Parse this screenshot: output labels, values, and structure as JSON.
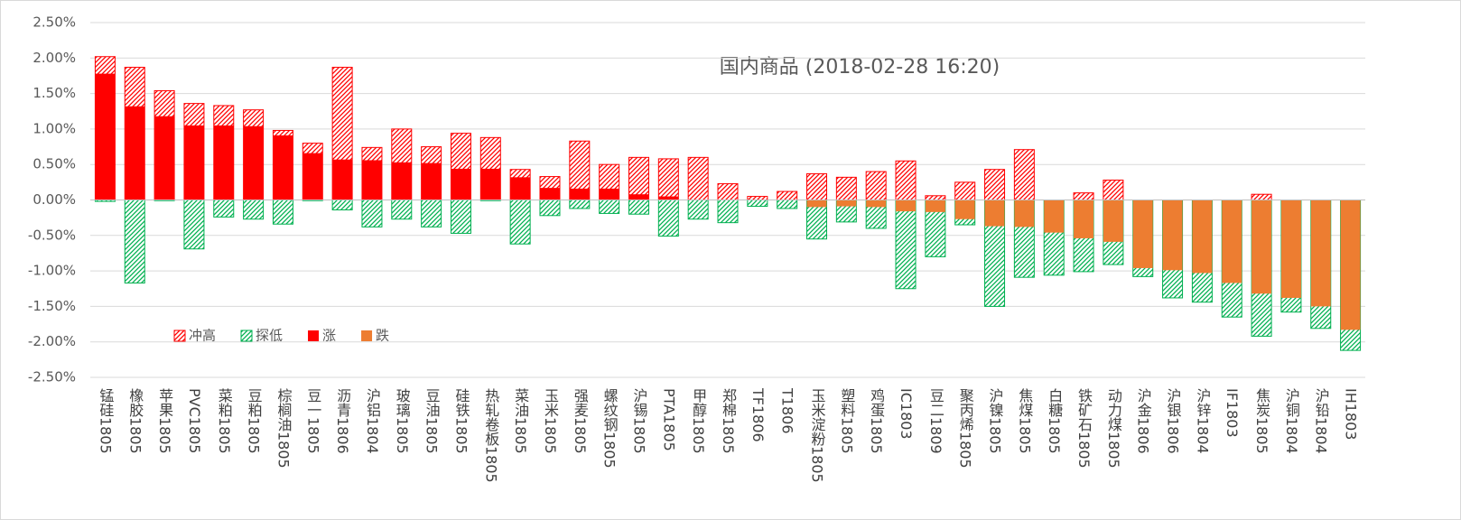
{
  "chart_data": {
    "type": "bar",
    "title": "国内商品 (2018-02-28 16:20)",
    "categories": [
      "锰硅1805",
      "橡胶1805",
      "苹果1805",
      "PVC1805",
      "菜粕1805",
      "豆粕1805",
      "棕榈油1805",
      "豆一1805",
      "沥青1806",
      "沪铝1804",
      "玻璃1805",
      "豆油1805",
      "硅铁1805",
      "热轧卷板1805",
      "菜油1805",
      "玉米1805",
      "强麦1805",
      "螺纹钢1805",
      "沪锡1805",
      "PTA1805",
      "甲醇1805",
      "郑棉1805",
      "TF1806",
      "T1806",
      "玉米淀粉1805",
      "塑料1805",
      "鸡蛋1805",
      "IC1803",
      "豆二1809",
      "聚丙烯1805",
      "沪镍1805",
      "焦煤1805",
      "白糖1805",
      "铁矿石1805",
      "动力煤1805",
      "沪金1806",
      "沪银1806",
      "沪锌1804",
      "IF1803",
      "焦炭1805",
      "沪铜1804",
      "沪铅1804",
      "IH1803"
    ],
    "series": [
      {
        "name": "冲高",
        "color": "#ff0000",
        "fill": "hatch",
        "values": [
          2.02,
          1.87,
          1.54,
          1.36,
          1.33,
          1.27,
          0.98,
          0.8,
          1.87,
          0.74,
          1.0,
          0.75,
          0.94,
          0.88,
          0.43,
          0.33,
          0.83,
          0.5,
          0.6,
          0.58,
          0.6,
          0.23,
          0.05,
          0.12,
          0.37,
          0.32,
          0.4,
          0.55,
          0.06,
          0.25,
          0.43,
          0.71,
          null,
          0.1,
          0.28,
          null,
          null,
          null,
          null,
          0.08,
          null,
          null,
          null
        ]
      },
      {
        "name": "探低",
        "color": "#00b050",
        "fill": "hatch",
        "values": [
          -0.02,
          -1.17,
          -0.01,
          -0.69,
          -0.24,
          -0.27,
          -0.34,
          -0.01,
          -0.14,
          -0.38,
          -0.27,
          -0.38,
          -0.47,
          -0.01,
          -0.62,
          -0.22,
          -0.12,
          -0.19,
          -0.2,
          -0.51,
          -0.27,
          -0.32,
          -0.09,
          -0.12,
          -0.55,
          -0.31,
          -0.4,
          -1.25,
          -0.8,
          -0.35,
          -1.5,
          -1.09,
          -1.06,
          -1.01,
          -0.91,
          -1.08,
          -1.38,
          -1.44,
          -1.65,
          -1.92,
          -1.58,
          -1.81,
          -2.12
        ]
      },
      {
        "name": "涨",
        "color": "#ff0000",
        "fill": "solid",
        "values": [
          1.78,
          1.32,
          1.18,
          1.05,
          1.05,
          1.04,
          0.91,
          0.66,
          0.57,
          0.56,
          0.53,
          0.52,
          0.44,
          0.44,
          0.32,
          0.17,
          0.16,
          0.16,
          0.08,
          0.05,
          null,
          null,
          null,
          null,
          null,
          null,
          null,
          null,
          null,
          null,
          null,
          null,
          null,
          null,
          null,
          null,
          null,
          null,
          null,
          null,
          null,
          null,
          null
        ]
      },
      {
        "name": "跌",
        "color": "#ed7d31",
        "fill": "solid",
        "values": [
          null,
          null,
          null,
          null,
          null,
          null,
          null,
          null,
          null,
          null,
          null,
          null,
          null,
          null,
          null,
          null,
          null,
          null,
          null,
          null,
          null,
          null,
          null,
          null,
          -0.1,
          -0.09,
          -0.1,
          -0.16,
          -0.17,
          -0.27,
          -0.37,
          -0.38,
          -0.46,
          -0.54,
          -0.59,
          -0.96,
          -0.99,
          -1.03,
          -1.17,
          -1.32,
          -1.38,
          -1.5,
          -1.83
        ]
      }
    ],
    "ylim": [
      -2.5,
      2.5
    ],
    "yticks": [
      {
        "value": -2.5,
        "label": "-2.50%"
      },
      {
        "value": -2.0,
        "label": "-2.00%"
      },
      {
        "value": -1.5,
        "label": "-1.50%"
      },
      {
        "value": -1.0,
        "label": "-1.00%"
      },
      {
        "value": -0.5,
        "label": "-0.50%"
      },
      {
        "value": 0,
        "label": "0.00%"
      },
      {
        "value": 0.5,
        "label": "0.50%"
      },
      {
        "value": 1.0,
        "label": "1.00%"
      },
      {
        "value": 1.5,
        "label": "1.50%"
      },
      {
        "value": 2.0,
        "label": "2.00%"
      },
      {
        "value": 2.5,
        "label": "2.50%"
      }
    ],
    "grid": true,
    "legend": "lower-left"
  }
}
